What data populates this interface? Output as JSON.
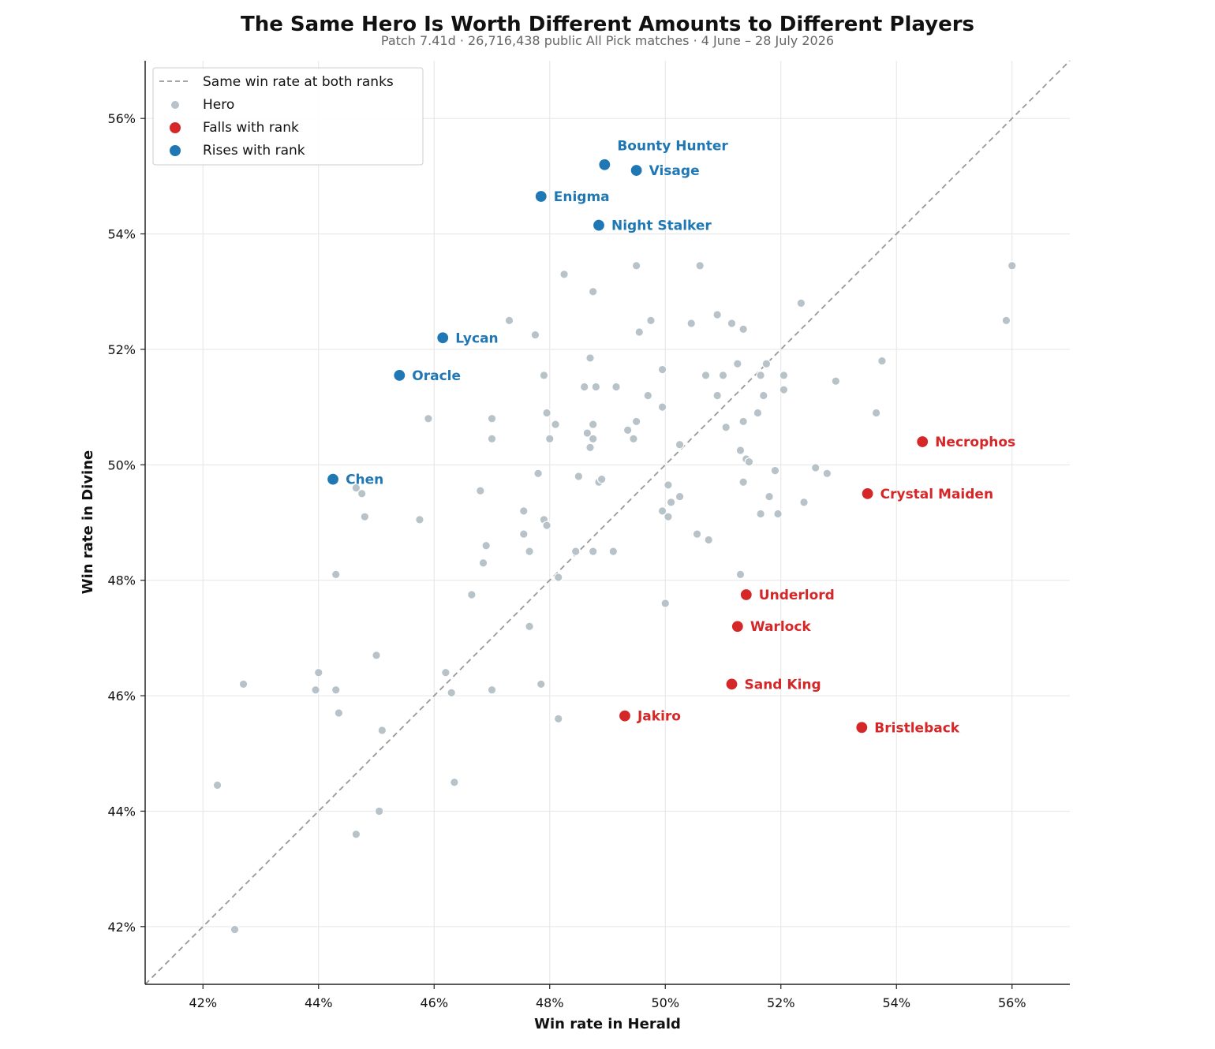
{
  "title": "The Same Hero Is Worth Different Amounts to Different Players",
  "subtitle": "Patch 7.41d · 26,716,438 public All Pick matches · 4 June – 28 July 2026",
  "colors": {
    "hero": "#b8c2c9",
    "falls": "#d62728",
    "rises": "#1f77b4",
    "diagonal": "#999999",
    "grid": "#e6e6e6"
  },
  "chart_data": {
    "type": "scatter",
    "xlabel": "Win rate in Herald",
    "ylabel": "Win rate in Divine",
    "xlim": [
      41.0,
      57.0
    ],
    "ylim": [
      41.0,
      57.0
    ],
    "x_ticks": [
      "42%",
      "44%",
      "46%",
      "48%",
      "50%",
      "52%",
      "54%",
      "56%"
    ],
    "y_ticks": [
      "42%",
      "44%",
      "46%",
      "48%",
      "50%",
      "52%",
      "54%",
      "56%"
    ],
    "grid": true,
    "legend_position": "top-left",
    "legend": {
      "diagonal": "Same win rate at both ranks",
      "hero": "Hero",
      "falls": "Falls with rank",
      "rises": "Rises with rank"
    },
    "series": [
      {
        "name": "Hero",
        "points": [
          [
            42.55,
            41.95
          ],
          [
            42.25,
            44.45
          ],
          [
            42.7,
            46.2
          ],
          [
            44.0,
            46.4
          ],
          [
            43.95,
            46.1
          ],
          [
            44.3,
            46.1
          ],
          [
            44.35,
            45.7
          ],
          [
            44.65,
            43.6
          ],
          [
            45.05,
            44.0
          ],
          [
            45.0,
            46.7
          ],
          [
            45.1,
            45.4
          ],
          [
            44.3,
            48.1
          ],
          [
            44.65,
            49.6
          ],
          [
            44.75,
            49.5
          ],
          [
            44.8,
            49.1
          ],
          [
            45.75,
            49.05
          ],
          [
            45.9,
            50.8
          ],
          [
            46.2,
            46.4
          ],
          [
            46.3,
            46.05
          ],
          [
            46.35,
            44.5
          ],
          [
            46.65,
            47.75
          ],
          [
            46.8,
            49.55
          ],
          [
            46.85,
            48.3
          ],
          [
            46.9,
            48.6
          ],
          [
            47.0,
            50.8
          ],
          [
            47.0,
            50.45
          ],
          [
            47.0,
            46.1
          ],
          [
            47.3,
            52.5
          ],
          [
            47.55,
            49.2
          ],
          [
            47.55,
            48.8
          ],
          [
            47.65,
            48.5
          ],
          [
            47.65,
            47.2
          ],
          [
            47.75,
            52.25
          ],
          [
            47.8,
            49.85
          ],
          [
            47.85,
            46.2
          ],
          [
            47.9,
            51.55
          ],
          [
            47.9,
            49.05
          ],
          [
            47.95,
            48.95
          ],
          [
            47.95,
            50.9
          ],
          [
            48.0,
            50.45
          ],
          [
            48.1,
            50.7
          ],
          [
            48.15,
            48.05
          ],
          [
            48.15,
            45.6
          ],
          [
            48.25,
            53.3
          ],
          [
            48.45,
            48.5
          ],
          [
            48.5,
            49.8
          ],
          [
            48.6,
            51.35
          ],
          [
            48.65,
            50.55
          ],
          [
            48.7,
            50.3
          ],
          [
            48.7,
            51.85
          ],
          [
            48.75,
            50.7
          ],
          [
            48.75,
            50.45
          ],
          [
            48.75,
            53.0
          ],
          [
            48.75,
            48.5
          ],
          [
            48.8,
            51.35
          ],
          [
            48.85,
            49.7
          ],
          [
            48.9,
            49.75
          ],
          [
            49.1,
            48.5
          ],
          [
            49.15,
            51.35
          ],
          [
            49.35,
            50.6
          ],
          [
            49.45,
            50.45
          ],
          [
            49.5,
            50.75
          ],
          [
            49.5,
            53.45
          ],
          [
            49.55,
            52.3
          ],
          [
            49.7,
            51.2
          ],
          [
            49.75,
            52.5
          ],
          [
            49.95,
            51.65
          ],
          [
            49.95,
            51.0
          ],
          [
            49.95,
            49.2
          ],
          [
            50.0,
            47.6
          ],
          [
            50.05,
            49.65
          ],
          [
            50.05,
            49.1
          ],
          [
            50.1,
            49.35
          ],
          [
            50.25,
            49.45
          ],
          [
            50.25,
            50.35
          ],
          [
            50.45,
            52.45
          ],
          [
            50.55,
            48.8
          ],
          [
            50.6,
            53.45
          ],
          [
            50.7,
            51.55
          ],
          [
            50.75,
            48.7
          ],
          [
            50.9,
            52.6
          ],
          [
            50.9,
            51.2
          ],
          [
            51.0,
            51.55
          ],
          [
            51.05,
            50.65
          ],
          [
            51.15,
            52.45
          ],
          [
            51.25,
            51.75
          ],
          [
            51.3,
            50.25
          ],
          [
            51.3,
            48.1
          ],
          [
            51.35,
            52.35
          ],
          [
            51.35,
            50.75
          ],
          [
            51.35,
            49.7
          ],
          [
            51.4,
            50.1
          ],
          [
            51.45,
            50.05
          ],
          [
            51.6,
            50.9
          ],
          [
            51.65,
            51.55
          ],
          [
            51.65,
            49.15
          ],
          [
            51.7,
            51.2
          ],
          [
            51.75,
            51.75
          ],
          [
            51.8,
            49.45
          ],
          [
            51.9,
            49.9
          ],
          [
            51.95,
            49.15
          ],
          [
            52.05,
            51.55
          ],
          [
            52.05,
            51.3
          ],
          [
            52.35,
            52.8
          ],
          [
            52.4,
            49.35
          ],
          [
            52.6,
            49.95
          ],
          [
            52.8,
            49.85
          ],
          [
            52.95,
            51.45
          ],
          [
            53.65,
            50.9
          ],
          [
            53.75,
            51.8
          ],
          [
            55.9,
            52.5
          ],
          [
            56.0,
            53.45
          ]
        ]
      },
      {
        "name": "Falls with rank",
        "points": [
          {
            "label": "Necrophos",
            "x": 54.45,
            "y": 50.4
          },
          {
            "label": "Crystal Maiden",
            "x": 53.5,
            "y": 49.5
          },
          {
            "label": "Underlord",
            "x": 51.4,
            "y": 47.75
          },
          {
            "label": "Warlock",
            "x": 51.25,
            "y": 47.2
          },
          {
            "label": "Sand King",
            "x": 51.15,
            "y": 46.2
          },
          {
            "label": "Jakiro",
            "x": 49.3,
            "y": 45.65
          },
          {
            "label": "Bristleback",
            "x": 53.4,
            "y": 45.45
          }
        ]
      },
      {
        "name": "Rises with rank",
        "points": [
          {
            "label": "Bounty Hunter",
            "x": 48.95,
            "y": 55.2
          },
          {
            "label": "Visage",
            "x": 49.5,
            "y": 55.1
          },
          {
            "label": "Enigma",
            "x": 47.85,
            "y": 54.65
          },
          {
            "label": "Night Stalker",
            "x": 48.85,
            "y": 54.15
          },
          {
            "label": "Lycan",
            "x": 46.15,
            "y": 52.2
          },
          {
            "label": "Oracle",
            "x": 45.4,
            "y": 51.55
          },
          {
            "label": "Chen",
            "x": 44.25,
            "y": 49.75
          }
        ]
      }
    ]
  }
}
